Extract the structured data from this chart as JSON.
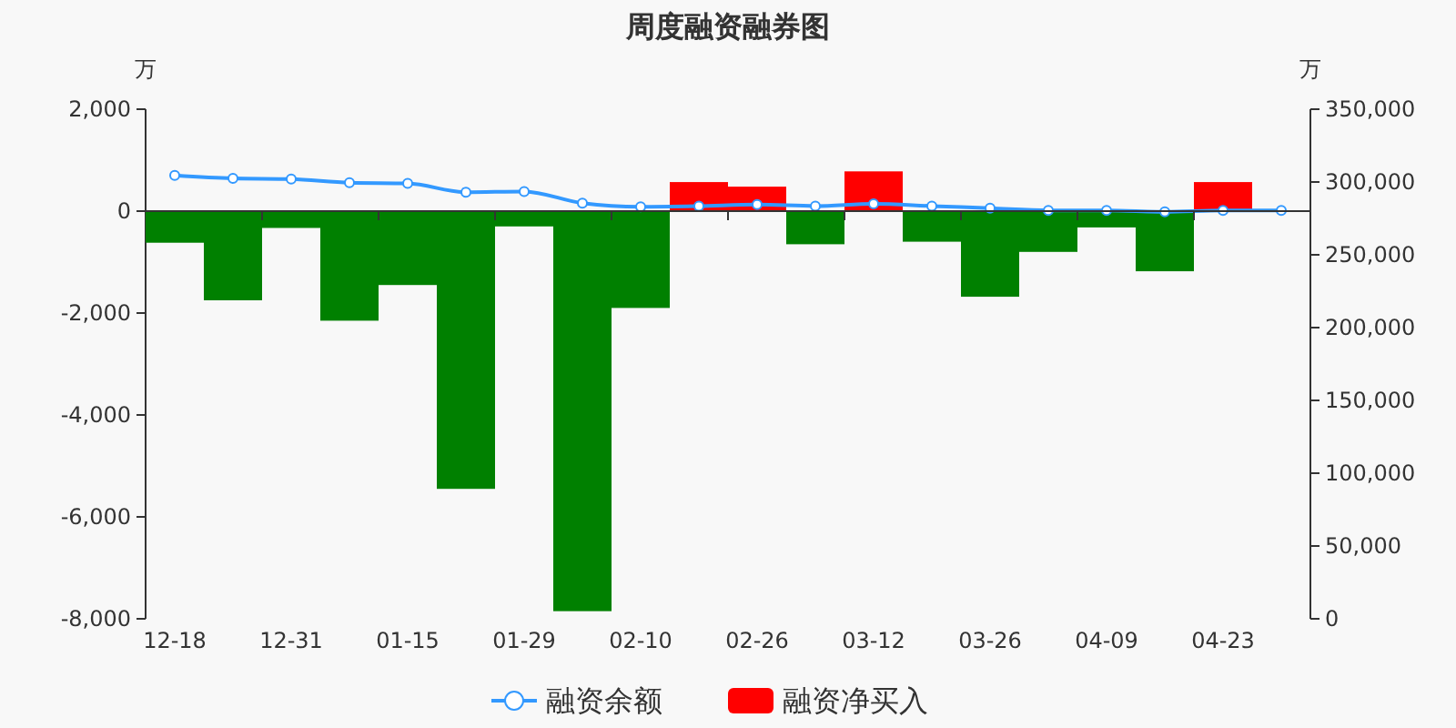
{
  "chart_data": {
    "type": "bar",
    "title": "周度融资融券图",
    "ylabel": "万",
    "y2label": "万",
    "categories": [
      "12-18",
      null,
      "12-31",
      null,
      "01-15",
      null,
      "01-29",
      null,
      "02-10",
      null,
      "02-26",
      null,
      "03-12",
      null,
      "03-26",
      null,
      "04-09",
      null,
      "04-23",
      null
    ],
    "series": [
      {
        "name": "融资余额",
        "type": "line",
        "axis": "y2",
        "color": "#3399ff",
        "marker": "circle",
        "values": [
          304500,
          302500,
          302000,
          299500,
          299000,
          293000,
          293500,
          285500,
          283000,
          283500,
          284500,
          283500,
          285000,
          283500,
          282000,
          280500,
          280500,
          279500,
          280500,
          280500
        ]
      },
      {
        "name": "融资净买入",
        "color": "#ff0000",
        "colors": [
          "#008000",
          "#008000",
          "#008000",
          "#008000",
          "#008000",
          "#008000",
          "#008000",
          "#008000",
          "#008000",
          "#ff0000",
          "#ff0000",
          "#008000",
          "#ff0000",
          "#008000",
          "#008000",
          "#008000",
          "#008000",
          "#008000",
          "#ff0000",
          null
        ],
        "values": [
          -620,
          -1750,
          -330,
          -2150,
          -1450,
          -5450,
          -300,
          -7850,
          -1900,
          570,
          480,
          -650,
          780,
          -600,
          -1680,
          -800,
          -320,
          -1180,
          570,
          null
        ]
      }
    ],
    "ylim": [
      -8000,
      2000
    ],
    "yticks": [
      {
        "value": -8000,
        "label": "-8,000"
      },
      {
        "value": -6000,
        "label": "-6,000"
      },
      {
        "value": -4000,
        "label": "-4,000"
      },
      {
        "value": -2000,
        "label": "-2,000"
      },
      0,
      {
        "value": 2000,
        "label": "2,000"
      }
    ],
    "y2lim": [
      0,
      350000
    ],
    "y2ticks": [
      0,
      {
        "value": 50000,
        "label": "50,000"
      },
      {
        "value": 100000,
        "label": "100,000"
      },
      {
        "value": 150000,
        "label": "150,000"
      },
      {
        "value": 200000,
        "label": "200,000"
      },
      {
        "value": 250000,
        "label": "250,000"
      },
      {
        "value": 300000,
        "label": "300,000"
      },
      {
        "value": 350000,
        "label": "350,000"
      }
    ],
    "legend": "bottom"
  }
}
